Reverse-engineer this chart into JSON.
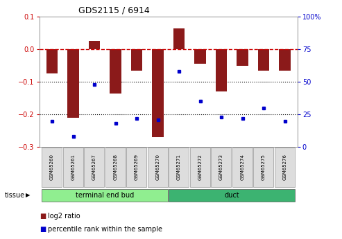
{
  "title": "GDS2115 / 6914",
  "samples": [
    "GSM65260",
    "GSM65261",
    "GSM65267",
    "GSM65268",
    "GSM65269",
    "GSM65270",
    "GSM65271",
    "GSM65272",
    "GSM65273",
    "GSM65274",
    "GSM65275",
    "GSM65276"
  ],
  "log2_ratio": [
    -0.075,
    -0.21,
    0.025,
    -0.135,
    -0.065,
    -0.27,
    0.065,
    -0.045,
    -0.13,
    -0.05,
    -0.065,
    -0.065
  ],
  "percentile_rank": [
    20,
    8,
    48,
    18,
    22,
    21,
    58,
    35,
    23,
    22,
    30,
    20
  ],
  "group1_label": "terminal end bud",
  "group1_count": 6,
  "group2_label": "duct",
  "group2_count": 6,
  "tissue_label": "tissue",
  "ylim_left": [
    -0.3,
    0.1
  ],
  "ylim_right": [
    0,
    100
  ],
  "yticks_left": [
    -0.3,
    -0.2,
    -0.1,
    0.0,
    0.1
  ],
  "yticks_right": [
    0,
    25,
    50,
    75,
    100
  ],
  "bar_color": "#8B1A1A",
  "dot_color": "#0000CC",
  "group1_color": "#90EE90",
  "group2_color": "#3CB371",
  "legend_red_label": "log2 ratio",
  "legend_blue_label": "percentile rank within the sample",
  "hline_color": "#CC0000",
  "dotted_color": "#000000",
  "bar_width": 0.55
}
